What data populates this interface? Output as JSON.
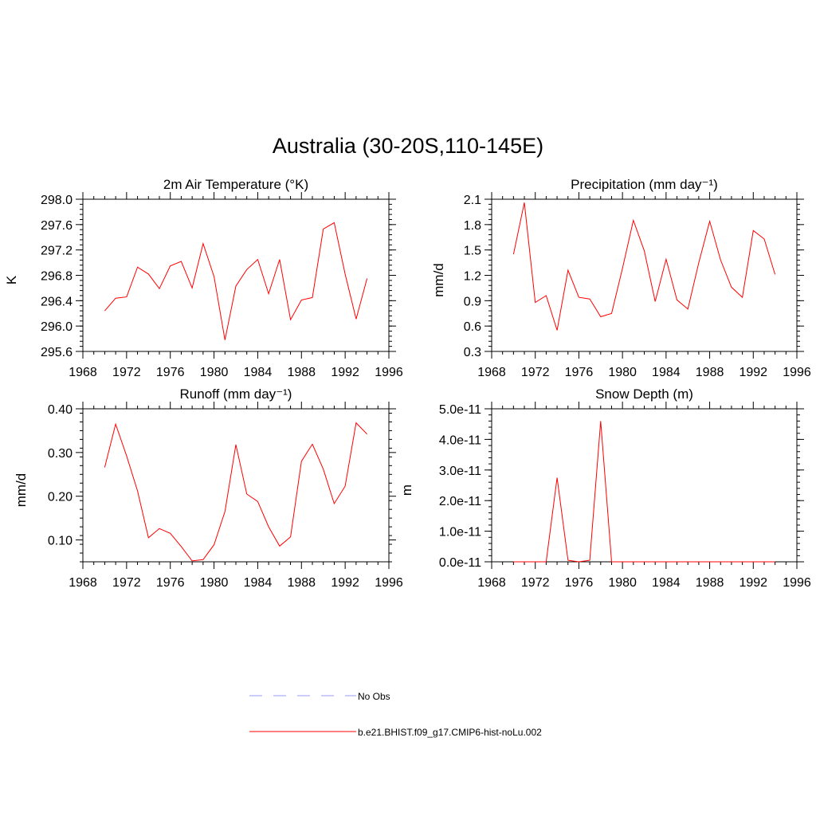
{
  "title": "Australia (30-20S,110-145E)",
  "legend": {
    "entries": [
      {
        "label": "No Obs",
        "color": "#9999ff",
        "dashed": true
      },
      {
        "label": "b.e21.BHIST.f09_g17.CMIP6-hist-noLu.002",
        "color": "#ff0000",
        "dashed": false
      }
    ]
  },
  "colors": {
    "series": "#ff0000",
    "obs": "#9999ff"
  },
  "chart_data": [
    {
      "type": "line",
      "title": "2m Air Temperature (°K)",
      "ylabel": "K",
      "xlim": [
        1968,
        1996
      ],
      "ylim": [
        295.6,
        298.0
      ],
      "xticks": [
        1968,
        1972,
        1976,
        1980,
        1984,
        1988,
        1992,
        1996
      ],
      "yticks": [
        "295.6",
        "296.0",
        "296.4",
        "296.8",
        "297.2",
        "297.6",
        "298.0"
      ],
      "x": [
        1970,
        1971,
        1972,
        1973,
        1974,
        1975,
        1976,
        1977,
        1978,
        1979,
        1980,
        1981,
        1982,
        1983,
        1984,
        1985,
        1986,
        1987,
        1988,
        1989,
        1990,
        1991,
        1992,
        1993,
        1994
      ],
      "series": [
        {
          "name": "b.e21.BHIST.f09_g17.CMIP6-hist-noLu.002",
          "values": [
            296.24,
            296.44,
            296.46,
            296.93,
            296.82,
            296.59,
            296.95,
            297.02,
            296.6,
            297.3,
            296.78,
            295.78,
            296.63,
            296.89,
            297.05,
            296.51,
            297.05,
            296.1,
            296.41,
            296.45,
            297.53,
            297.63,
            296.82,
            296.11,
            296.75
          ]
        }
      ]
    },
    {
      "type": "line",
      "title": "Precipitation (mm day⁻¹)",
      "ylabel": "mm/d",
      "xlim": [
        1968,
        1996
      ],
      "ylim": [
        0.3,
        2.1
      ],
      "xticks": [
        1968,
        1972,
        1976,
        1980,
        1984,
        1988,
        1992,
        1996
      ],
      "yticks": [
        "0.3",
        "0.6",
        "0.9",
        "1.2",
        "1.5",
        "1.8",
        "2.1"
      ],
      "x": [
        1970,
        1971,
        1972,
        1973,
        1974,
        1975,
        1976,
        1977,
        1978,
        1979,
        1980,
        1981,
        1982,
        1983,
        1984,
        1985,
        1986,
        1987,
        1988,
        1989,
        1990,
        1991,
        1992,
        1993,
        1994
      ],
      "series": [
        {
          "name": "b.e21.BHIST.f09_g17.CMIP6-hist-noLu.002",
          "values": [
            1.45,
            2.06,
            0.88,
            0.96,
            0.55,
            1.26,
            0.94,
            0.92,
            0.71,
            0.75,
            1.28,
            1.85,
            1.49,
            0.89,
            1.39,
            0.91,
            0.8,
            1.35,
            1.84,
            1.38,
            1.06,
            0.94,
            1.73,
            1.63,
            1.21
          ]
        }
      ]
    },
    {
      "type": "line",
      "title": "Runoff (mm day⁻¹)",
      "ylabel": "mm/d",
      "xlim": [
        1968,
        1996
      ],
      "ylim": [
        0.05,
        0.4
      ],
      "xticks": [
        1968,
        1972,
        1976,
        1980,
        1984,
        1988,
        1992,
        1996
      ],
      "yticks": [
        "0.10",
        "0.20",
        "0.30",
        "0.40"
      ],
      "x": [
        1970,
        1971,
        1972,
        1973,
        1974,
        1975,
        1976,
        1977,
        1978,
        1979,
        1980,
        1981,
        1982,
        1983,
        1984,
        1985,
        1986,
        1987,
        1988,
        1989,
        1990,
        1991,
        1992,
        1993,
        1994
      ],
      "series": [
        {
          "name": "b.e21.BHIST.f09_g17.CMIP6-hist-noLu.002",
          "values": [
            0.266,
            0.365,
            0.292,
            0.212,
            0.105,
            0.126,
            0.115,
            0.085,
            0.052,
            0.055,
            0.089,
            0.165,
            0.318,
            0.205,
            0.188,
            0.13,
            0.086,
            0.107,
            0.28,
            0.319,
            0.262,
            0.183,
            0.223,
            0.368,
            0.342
          ]
        }
      ]
    },
    {
      "type": "line",
      "title": "Snow Depth (m)",
      "ylabel": "m",
      "xlim": [
        1968,
        1996
      ],
      "ylim": [
        0,
        5e-11
      ],
      "xticks": [
        1968,
        1972,
        1976,
        1980,
        1984,
        1988,
        1992,
        1996
      ],
      "yticks": [
        "0.0e-11",
        "1.0e-11",
        "2.0e-11",
        "3.0e-11",
        "4.0e-11",
        "5.0e-11"
      ],
      "x": [
        1970,
        1971,
        1972,
        1973,
        1974,
        1975,
        1976,
        1977,
        1978,
        1979,
        1980,
        1981,
        1982,
        1983,
        1984,
        1985,
        1986,
        1987,
        1988,
        1989,
        1990,
        1991,
        1992,
        1993,
        1994
      ],
      "series": [
        {
          "name": "b.e21.BHIST.f09_g17.CMIP6-hist-noLu.002",
          "values": [
            0,
            0,
            0,
            0,
            2.75e-11,
            5e-13,
            0,
            5e-13,
            4.6e-11,
            0,
            0,
            0,
            0,
            0,
            0,
            0,
            0,
            0,
            0,
            0,
            0,
            0,
            0,
            0,
            0
          ]
        }
      ]
    }
  ]
}
